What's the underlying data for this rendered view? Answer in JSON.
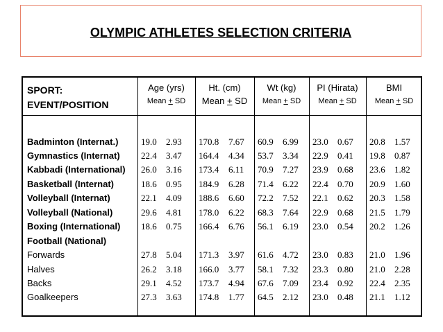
{
  "title": "OLYMPIC ATHLETES SELECTION CRITERIA",
  "header": {
    "sport_line1": "SPORT:",
    "sport_line2": "EVENT/POSITION",
    "columns": [
      {
        "label": "Age (yrs)",
        "sub_pre": "Mean ",
        "sub_pm": "+",
        "sub_post": " SD"
      },
      {
        "label": "Ht. (cm)",
        "sub_pre": "Mean ",
        "sub_pm": "+",
        "sub_post": " SD"
      },
      {
        "label": "Wt (kg)",
        "sub_pre": "Mean ",
        "sub_pm": "+",
        "sub_post": " SD"
      },
      {
        "label": "PI (Hirata)",
        "sub_pre": "Mean ",
        "sub_pm": "+",
        "sub_post": " SD"
      },
      {
        "label": "BMI",
        "sub_pre": "Mean ",
        "sub_pm": "+",
        "sub_post": " SD"
      }
    ]
  },
  "rows": [
    {
      "label": "Badminton (Internat.)",
      "bold": true,
      "values": [
        [
          "19.0",
          "2.93"
        ],
        [
          "170.8",
          "7.67"
        ],
        [
          "60.9",
          "6.99"
        ],
        [
          "23.0",
          "0.67"
        ],
        [
          "20.8",
          "1.57"
        ]
      ]
    },
    {
      "label": "Gymnastics (Internat)",
      "bold": true,
      "values": [
        [
          "22.4",
          "3.47"
        ],
        [
          "164.4",
          "4.34"
        ],
        [
          "53.7",
          "3.34"
        ],
        [
          "22.9",
          "0.41"
        ],
        [
          "19.8",
          "0.87"
        ]
      ]
    },
    {
      "label": "Kabbadi (International)",
      "bold": true,
      "values": [
        [
          "26.0",
          "3.16"
        ],
        [
          "173.4",
          "6.11"
        ],
        [
          "70.9",
          "7.27"
        ],
        [
          "23.9",
          "0.68"
        ],
        [
          "23.6",
          "1.82"
        ]
      ]
    },
    {
      "label": "Basketball (Internat)",
      "bold": true,
      "values": [
        [
          "18.6",
          "0.95"
        ],
        [
          "184.9",
          "6.28"
        ],
        [
          "71.4",
          "6.22"
        ],
        [
          "22.4",
          "0.70"
        ],
        [
          "20.9",
          "1.60"
        ]
      ]
    },
    {
      "label": "Volleyball (Internat)",
      "bold": true,
      "values": [
        [
          "22.1",
          "4.09"
        ],
        [
          "188.6",
          "6.60"
        ],
        [
          "72.2",
          "7.52"
        ],
        [
          "22.1",
          "0.62"
        ],
        [
          "20.3",
          "1.58"
        ]
      ]
    },
    {
      "label": "Volleyball (National)",
      "bold": true,
      "values": [
        [
          "29.6",
          "4.81"
        ],
        [
          "178.0",
          "6.22"
        ],
        [
          "68.3",
          "7.64"
        ],
        [
          "22.9",
          "0.68"
        ],
        [
          "21.5",
          "1.79"
        ]
      ]
    },
    {
      "label": "Boxing (International)",
      "bold": true,
      "values": [
        [
          "18.6",
          "0.75"
        ],
        [
          "166.4",
          "6.76"
        ],
        [
          "56.1",
          "6.19"
        ],
        [
          "23.0",
          "0.54"
        ],
        [
          "20.2",
          "1.26"
        ]
      ]
    },
    {
      "label": "Football (National)",
      "bold": true,
      "values": null
    },
    {
      "label": "Forwards",
      "bold": false,
      "values": [
        [
          "27.8",
          "5.04"
        ],
        [
          "171.3",
          "3.97"
        ],
        [
          "61.6",
          "4.72"
        ],
        [
          "23.0",
          "0.83"
        ],
        [
          "21.0",
          "1.96"
        ]
      ]
    },
    {
      "label": "Halves",
      "bold": false,
      "values": [
        [
          "26.2",
          "3.18"
        ],
        [
          "166.0",
          "3.77"
        ],
        [
          "58.1",
          "7.32"
        ],
        [
          "23.3",
          "0.80"
        ],
        [
          "21.0",
          "2.28"
        ]
      ]
    },
    {
      "label": "Backs",
      "bold": false,
      "values": [
        [
          "29.1",
          "4.52"
        ],
        [
          "173.7",
          "4.94"
        ],
        [
          "67.6",
          "7.09"
        ],
        [
          "23.4",
          "0.92"
        ],
        [
          "22.4",
          "2.35"
        ]
      ]
    },
    {
      "label": "Goalkeepers",
      "bold": false,
      "values": [
        [
          "27.3",
          "3.63"
        ],
        [
          "174.8",
          "1.77"
        ],
        [
          "64.5",
          "2.12"
        ],
        [
          "23.0",
          "0.48"
        ],
        [
          "21.1",
          "1.12"
        ]
      ]
    }
  ]
}
